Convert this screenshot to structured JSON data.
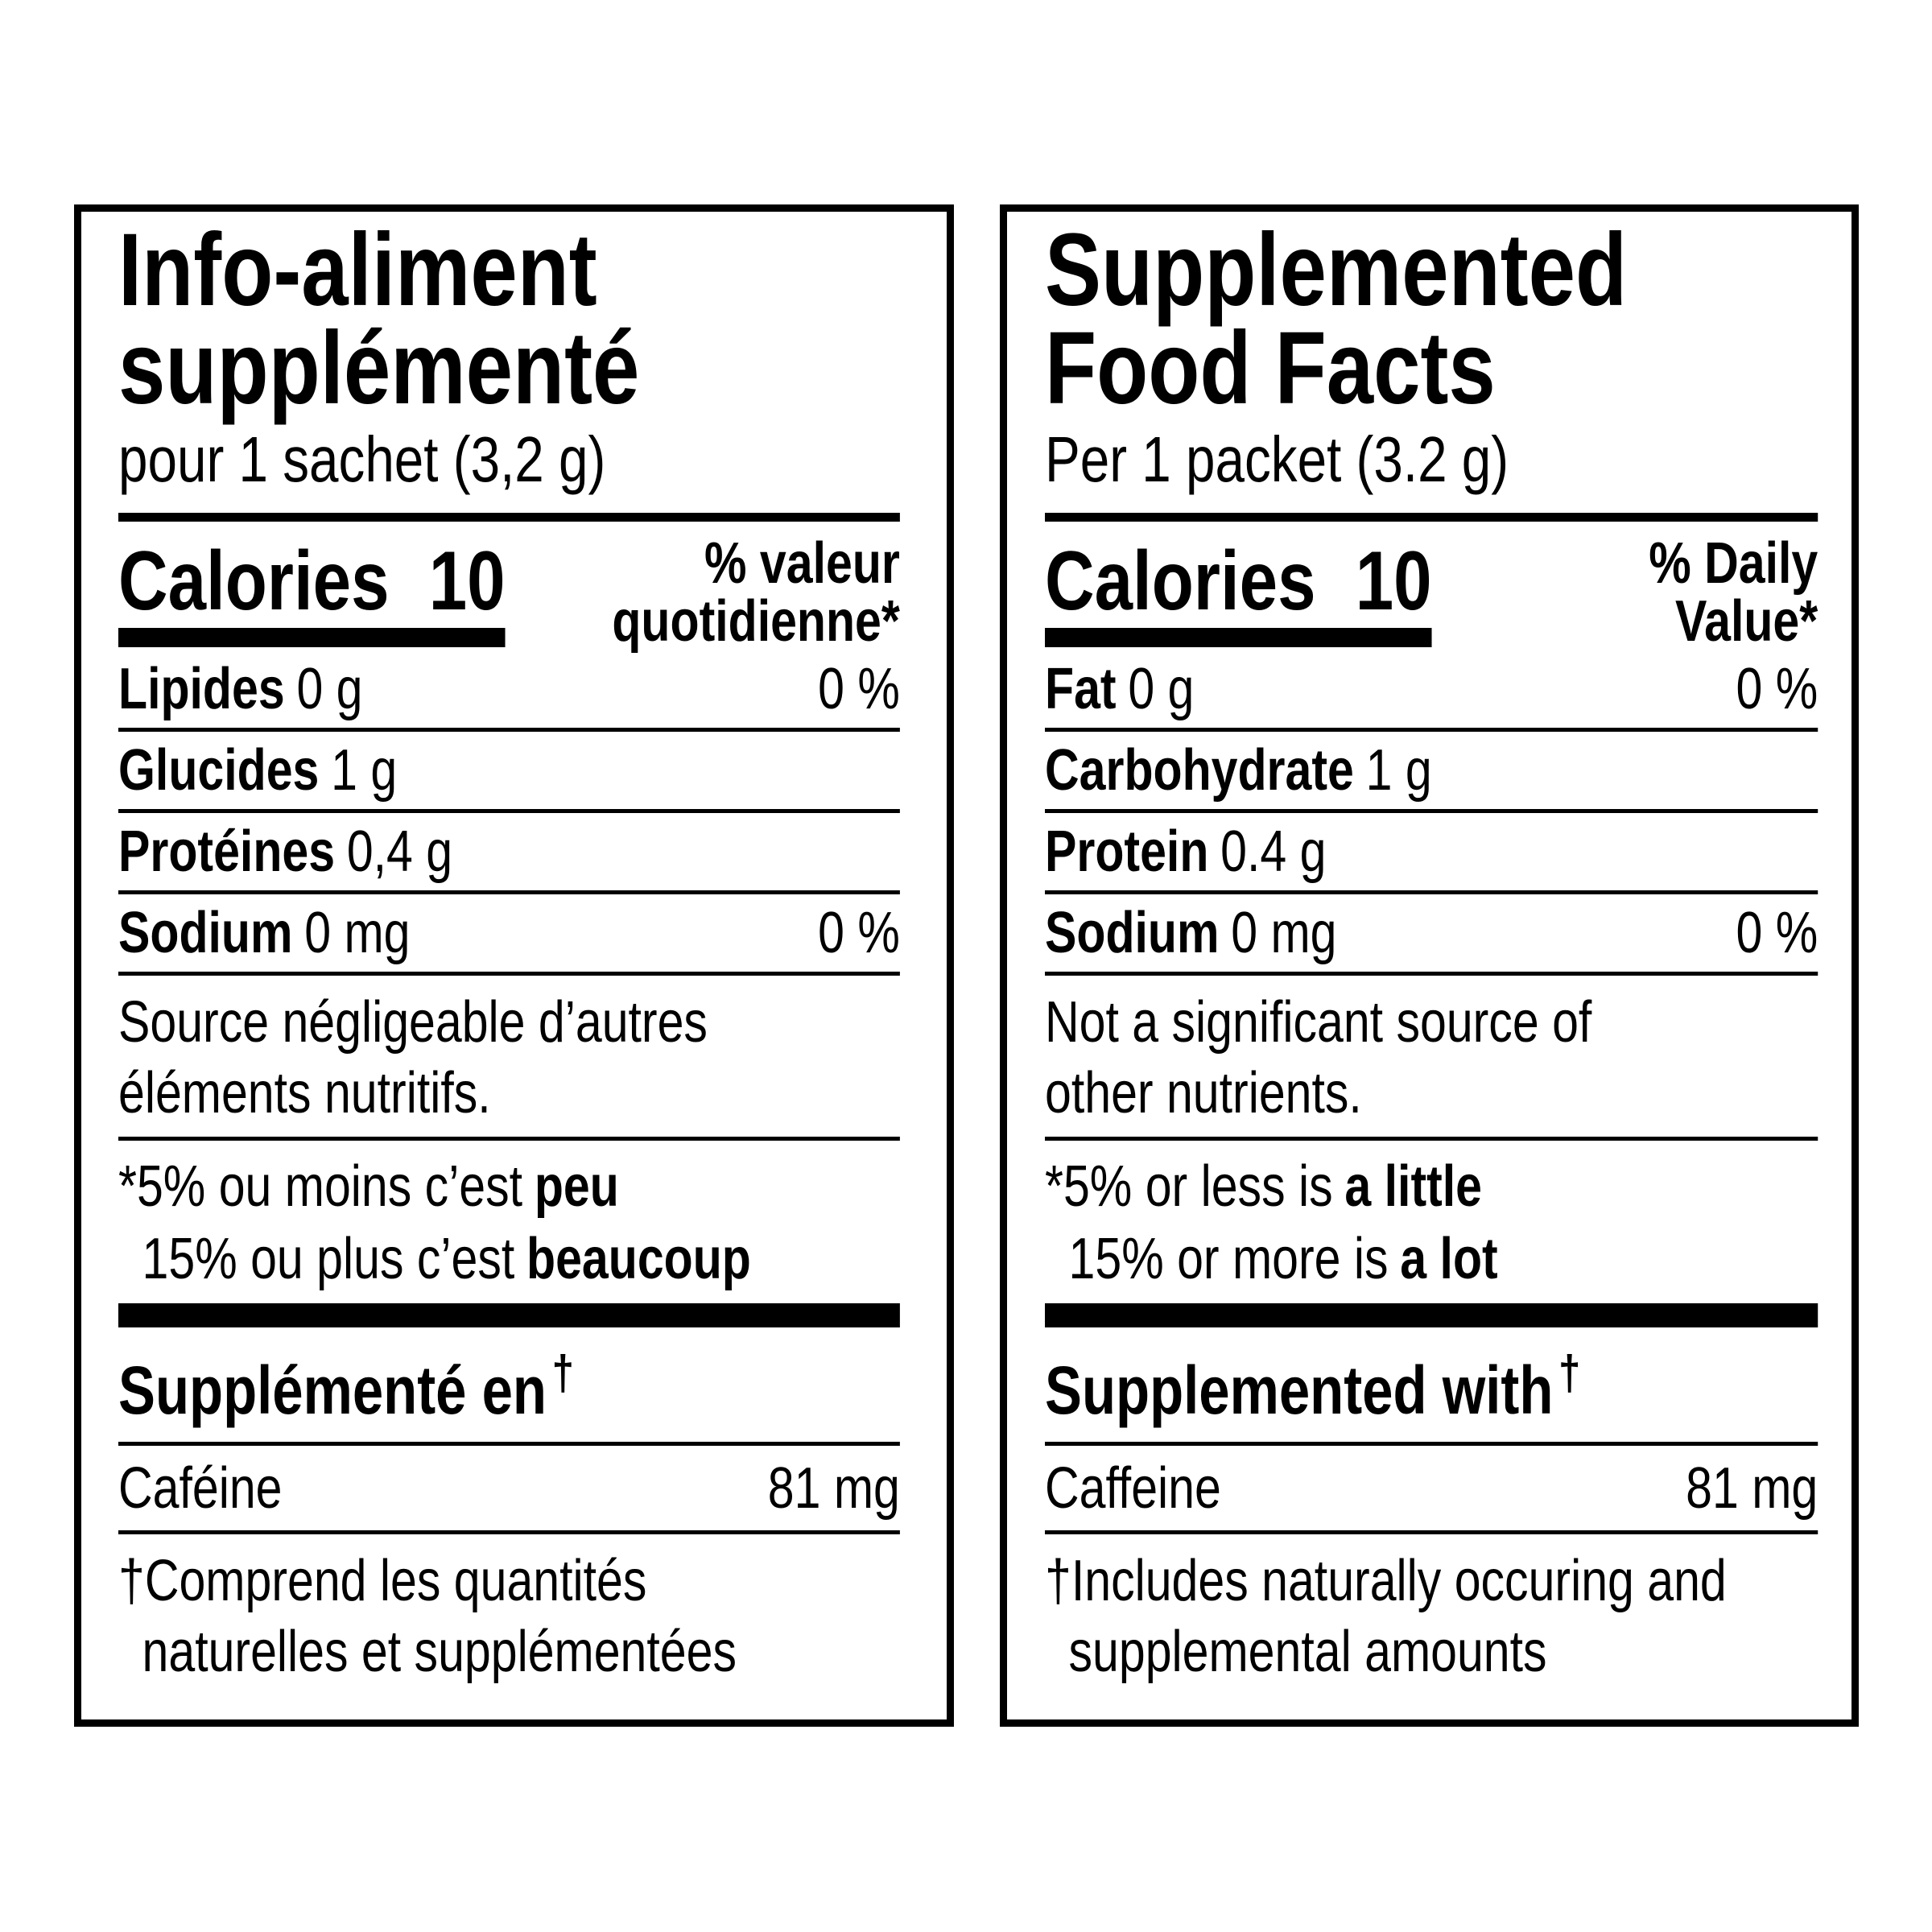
{
  "panels": [
    {
      "title": [
        "Info-aliment",
        "supplémenté"
      ],
      "serving": "pour 1 sachet (3,2 g)",
      "calories_label": "Calories",
      "calories": 10,
      "dv_header": [
        "% valeur",
        "quotidienne*"
      ],
      "nutrients": [
        {
          "name": "Lipides",
          "amount": "0 g",
          "dv": "0 %"
        },
        {
          "name": "Glucides",
          "amount": "1 g"
        },
        {
          "name": "Protéines",
          "amount": "0,4 g"
        },
        {
          "name": "Sodium",
          "amount": "0 mg",
          "dv": "0 %"
        }
      ],
      "note": [
        "Source négligeable d’autres",
        "éléments nutritifs."
      ],
      "footnote": [
        {
          "text": "*5% ou moins c’est",
          "bold": "peu"
        },
        {
          "text": "15% ou plus c’est",
          "bold": "beaucoup"
        }
      ],
      "supplement_header": "Supplémenté en",
      "dagger": "†",
      "supplement": {
        "name": "Caféine",
        "amount": "81 mg"
      },
      "dagger_note": [
        "†Comprend les quantités",
        "naturelles et supplémentées"
      ]
    },
    {
      "title": [
        "Supplemented",
        "Food Facts"
      ],
      "serving": "Per 1 packet (3.2 g)",
      "calories_label": "Calories",
      "calories": 10,
      "dv_header": [
        "% Daily",
        "Value*"
      ],
      "nutrients": [
        {
          "name": "Fat",
          "amount": "0 g",
          "dv": "0 %"
        },
        {
          "name": "Carbohydrate",
          "amount": "1 g"
        },
        {
          "name": "Protein",
          "amount": "0.4 g"
        },
        {
          "name": "Sodium",
          "amount": "0 mg",
          "dv": "0 %"
        }
      ],
      "note": [
        "Not a significant source of",
        "other nutrients."
      ],
      "footnote": [
        {
          "text": "*5% or less is",
          "bold": "a little"
        },
        {
          "text": "15% or more is",
          "bold": "a lot"
        }
      ],
      "supplement_header": "Supplemented with",
      "dagger": "†",
      "supplement": {
        "name": "Caffeine",
        "amount": "81 mg"
      },
      "dagger_note": [
        "†Includes naturally occuring and",
        "supplemental amounts"
      ]
    }
  ]
}
